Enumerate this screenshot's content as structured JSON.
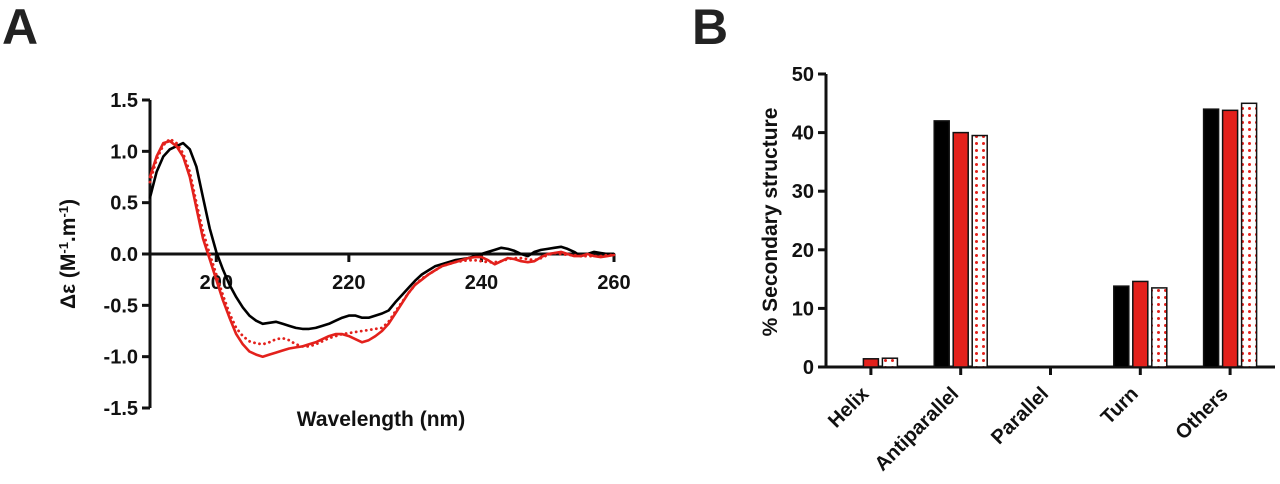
{
  "panels": {
    "a_label": "A",
    "b_label": "B"
  },
  "chart_data": [
    {
      "type": "line",
      "xlabel": "Wavelength (nm)",
      "ylabel_main": "Δε (M",
      "ylabel_sup1": "-1",
      "ylabel_mid": ".m",
      "ylabel_sup2": "-1",
      "ylabel_end": ")",
      "xlim": [
        190,
        260
      ],
      "ylim": [
        -1.5,
        1.5
      ],
      "xticks": [
        200,
        220,
        240,
        260
      ],
      "yticks": [
        "1.5",
        "1.0",
        "0.5",
        "0.0",
        "-0.5",
        "-1.0",
        "-1.5"
      ],
      "series": [
        {
          "color": "#000000",
          "style": "solid",
          "x": [
            190,
            191,
            192,
            193,
            194,
            195,
            196,
            197,
            198,
            199,
            200,
            201,
            202,
            203,
            204,
            205,
            206,
            207,
            208,
            209,
            210,
            211,
            212,
            213,
            214,
            215,
            216,
            217,
            218,
            219,
            220,
            221,
            222,
            223,
            224,
            225,
            226,
            227,
            228,
            229,
            230,
            231,
            232,
            233,
            234,
            235,
            236,
            237,
            238,
            239,
            240,
            241,
            242,
            243,
            244,
            245,
            246,
            247,
            248,
            249,
            250,
            251,
            252,
            253,
            254,
            255,
            256,
            257,
            258,
            259,
            260
          ],
          "y": [
            0.55,
            0.8,
            0.95,
            1.02,
            1.05,
            1.08,
            1.02,
            0.85,
            0.55,
            0.25,
            0.02,
            -0.15,
            -0.3,
            -0.42,
            -0.52,
            -0.6,
            -0.65,
            -0.68,
            -0.67,
            -0.66,
            -0.68,
            -0.7,
            -0.72,
            -0.73,
            -0.73,
            -0.72,
            -0.7,
            -0.68,
            -0.65,
            -0.62,
            -0.6,
            -0.6,
            -0.62,
            -0.62,
            -0.6,
            -0.58,
            -0.55,
            -0.47,
            -0.4,
            -0.33,
            -0.26,
            -0.2,
            -0.16,
            -0.12,
            -0.1,
            -0.08,
            -0.06,
            -0.05,
            -0.04,
            -0.02,
            0.0,
            0.02,
            0.04,
            0.06,
            0.05,
            0.03,
            0.0,
            -0.02,
            0.02,
            0.04,
            0.05,
            0.06,
            0.07,
            0.05,
            0.02,
            -0.02,
            0.0,
            0.02,
            0.01,
            0.0,
            0.0
          ]
        },
        {
          "color": "#e3211c",
          "style": "solid",
          "x": [
            190,
            191,
            192,
            193,
            194,
            195,
            196,
            197,
            198,
            199,
            200,
            201,
            202,
            203,
            204,
            205,
            206,
            207,
            208,
            209,
            210,
            211,
            212,
            213,
            214,
            215,
            216,
            217,
            218,
            219,
            220,
            221,
            222,
            223,
            224,
            225,
            226,
            227,
            228,
            229,
            230,
            231,
            232,
            233,
            234,
            235,
            236,
            237,
            238,
            239,
            240,
            241,
            242,
            243,
            244,
            245,
            246,
            247,
            248,
            249,
            250,
            251,
            252,
            253,
            254,
            255,
            256,
            257,
            258,
            259,
            260
          ],
          "y": [
            0.75,
            0.95,
            1.08,
            1.1,
            1.05,
            0.95,
            0.75,
            0.45,
            0.15,
            -0.05,
            -0.25,
            -0.45,
            -0.62,
            -0.78,
            -0.88,
            -0.95,
            -0.98,
            -1.0,
            -0.98,
            -0.96,
            -0.94,
            -0.92,
            -0.91,
            -0.9,
            -0.88,
            -0.86,
            -0.83,
            -0.8,
            -0.78,
            -0.78,
            -0.8,
            -0.83,
            -0.86,
            -0.84,
            -0.8,
            -0.75,
            -0.68,
            -0.58,
            -0.48,
            -0.38,
            -0.3,
            -0.25,
            -0.2,
            -0.16,
            -0.12,
            -0.1,
            -0.08,
            -0.06,
            -0.04,
            -0.03,
            -0.03,
            -0.06,
            -0.1,
            -0.07,
            -0.04,
            -0.05,
            -0.07,
            -0.08,
            -0.07,
            -0.03,
            0.0,
            0.01,
            0.02,
            0.0,
            -0.02,
            -0.02,
            0.0,
            -0.02,
            -0.03,
            -0.02,
            -0.01
          ]
        },
        {
          "color": "#e3211c",
          "style": "dotted",
          "x": [
            190,
            191,
            192,
            193,
            194,
            195,
            196,
            197,
            198,
            199,
            200,
            201,
            202,
            203,
            204,
            205,
            206,
            207,
            208,
            209,
            210,
            211,
            212,
            213,
            214,
            215,
            216,
            217,
            218,
            219,
            220,
            221,
            222,
            223,
            224,
            225,
            226,
            227,
            228,
            229,
            230,
            231,
            232,
            233,
            234,
            235,
            236,
            237,
            238,
            239,
            240,
            241,
            242,
            243,
            244,
            245,
            246,
            247,
            248,
            249,
            250,
            251,
            252,
            253,
            254,
            255,
            256,
            257,
            258,
            259,
            260
          ],
          "y": [
            0.7,
            0.92,
            1.06,
            1.12,
            1.08,
            0.98,
            0.8,
            0.5,
            0.22,
            0.0,
            -0.2,
            -0.4,
            -0.58,
            -0.72,
            -0.8,
            -0.85,
            -0.87,
            -0.88,
            -0.86,
            -0.83,
            -0.82,
            -0.84,
            -0.88,
            -0.9,
            -0.9,
            -0.88,
            -0.85,
            -0.82,
            -0.8,
            -0.78,
            -0.77,
            -0.76,
            -0.75,
            -0.74,
            -0.73,
            -0.72,
            -0.66,
            -0.56,
            -0.47,
            -0.38,
            -0.3,
            -0.24,
            -0.2,
            -0.16,
            -0.12,
            -0.1,
            -0.08,
            -0.07,
            -0.06,
            -0.06,
            -0.07,
            -0.08,
            -0.08,
            -0.07,
            -0.05,
            -0.04,
            -0.04,
            -0.05,
            -0.06,
            -0.04,
            -0.01,
            0.01,
            0.0,
            -0.01,
            -0.01,
            -0.02,
            -0.02,
            -0.02,
            -0.02,
            -0.01,
            -0.01
          ]
        }
      ]
    },
    {
      "type": "bar",
      "ylabel": "% Secondary structure",
      "ylim": [
        0,
        50
      ],
      "yticks": [
        "0",
        "10",
        "20",
        "30",
        "40",
        "50"
      ],
      "categories": [
        "Helix",
        "Antiparallel",
        "Parallel",
        "Turn",
        "Others"
      ],
      "series": [
        {
          "fill": "#000000",
          "pattern": "solid",
          "values": [
            0.0,
            42.0,
            0.0,
            13.8,
            44.0
          ]
        },
        {
          "fill": "#e3211c",
          "pattern": "solid",
          "values": [
            1.4,
            40.0,
            0.0,
            14.6,
            43.8
          ]
        },
        {
          "fill": "#e3211c",
          "pattern": "dotted",
          "values": [
            1.5,
            39.5,
            0.0,
            13.5,
            45.0
          ]
        }
      ]
    }
  ]
}
